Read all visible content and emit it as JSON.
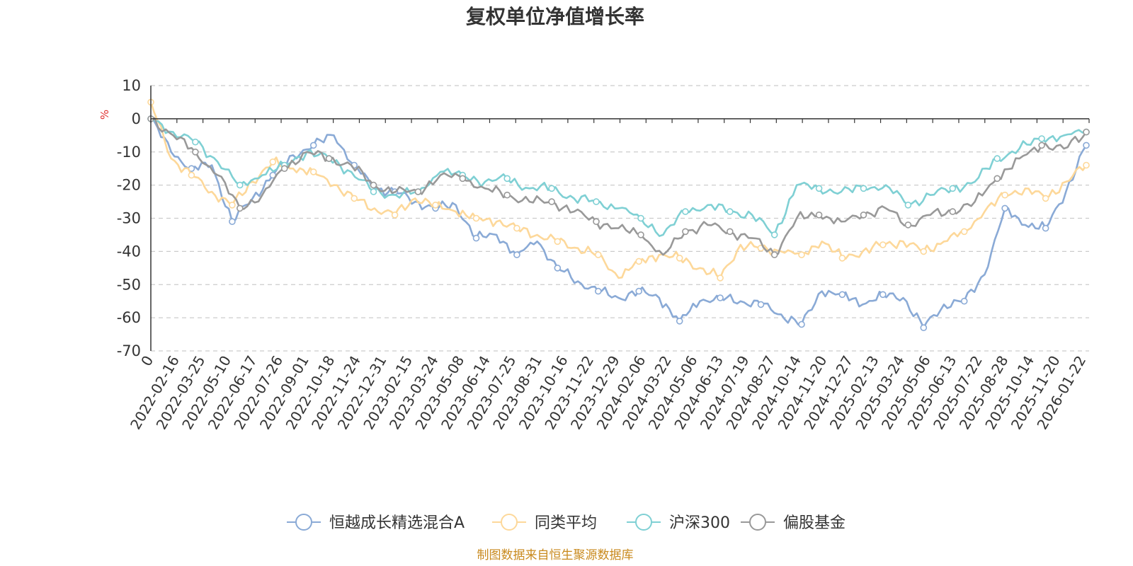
{
  "chart_data": {
    "type": "line",
    "title": "复权单位净值增长率",
    "ylabel": "%",
    "ylim": [
      -70,
      10
    ],
    "yticks": [
      10,
      0,
      -10,
      -20,
      -30,
      -40,
      -50,
      -60,
      -70
    ],
    "grid": true,
    "legend_position": "bottom",
    "source": "制图数据来自恒生聚源数据库",
    "x_start_label": "0",
    "x_tick_labels": [
      "2022-02-16",
      "2022-03-25",
      "2022-05-10",
      "2022-06-17",
      "2022-07-26",
      "2022-09-01",
      "2022-10-18",
      "2022-11-24",
      "2022-12-31",
      "2023-02-15",
      "2023-03-24",
      "2023-05-08",
      "2023-06-14",
      "2023-07-25",
      "2023-08-31",
      "2023-10-16",
      "2023-11-22",
      "2023-12-29",
      "2024-02-06",
      "2024-03-22",
      "2024-05-06",
      "2024-06-13",
      "2024-07-19",
      "2024-08-27",
      "2024-10-14",
      "2024-11-20",
      "2024-12-27",
      "2025-02-13",
      "2025-03-24",
      "2025-05-06",
      "2025-06-13",
      "2025-07-22",
      "2025-08-28",
      "2025-10-14",
      "2025-11-20",
      "2026-01-22"
    ],
    "series": [
      {
        "name": "恒越成长精选混合A",
        "color": "#8aaad6",
        "values": [
          0,
          -10,
          -15,
          -14,
          -31,
          -24,
          -17,
          -11,
          -8,
          -5,
          -14,
          -21,
          -22,
          -25,
          -27,
          -26,
          -36,
          -35,
          -41,
          -37,
          -45,
          -49,
          -52,
          -54,
          -52,
          -54,
          -61,
          -55,
          -54,
          -55,
          -56,
          -59,
          -62,
          -52,
          -53,
          -56,
          -53,
          -54,
          -63,
          -56,
          -55,
          -47,
          -27,
          -32,
          -33,
          -22,
          -8
        ]
      },
      {
        "name": "同类平均",
        "color": "#fdd89a",
        "values": [
          5,
          -12,
          -17,
          -22,
          -26,
          -19,
          -13,
          -15,
          -16,
          -20,
          -24,
          -27,
          -29,
          -24,
          -26,
          -28,
          -30,
          -31,
          -33,
          -35,
          -37,
          -39,
          -41,
          -48,
          -43,
          -41,
          -42,
          -45,
          -48,
          -38,
          -39,
          -40,
          -41,
          -37,
          -42,
          -40,
          -38,
          -37,
          -40,
          -37,
          -34,
          -28,
          -23,
          -21,
          -24,
          -19,
          -14
        ]
      },
      {
        "name": "沪深300",
        "color": "#7fd0d4",
        "values": [
          0,
          -4,
          -7,
          -13,
          -20,
          -17,
          -14,
          -10,
          -12,
          -16,
          -22,
          -23,
          -22,
          -16,
          -17,
          -19,
          -18,
          -21,
          -21,
          -24,
          -25,
          -27,
          -30,
          -35,
          -28,
          -26,
          -28,
          -29,
          -35,
          -20,
          -21,
          -22,
          -21,
          -20,
          -26,
          -23,
          -21,
          -19,
          -12,
          -9,
          -6,
          -5,
          -4
        ]
      },
      {
        "name": "偏股基金",
        "color": "#999999",
        "values": [
          0,
          -5,
          -10,
          -17,
          -27,
          -23,
          -15,
          -10,
          -12,
          -14,
          -20,
          -22,
          -22,
          -17,
          -18,
          -21,
          -23,
          -25,
          -25,
          -28,
          -31,
          -33,
          -35,
          -41,
          -34,
          -32,
          -34,
          -36,
          -41,
          -30,
          -29,
          -31,
          -29,
          -27,
          -32,
          -29,
          -28,
          -25,
          -18,
          -12,
          -8,
          -9,
          -4
        ]
      }
    ]
  }
}
